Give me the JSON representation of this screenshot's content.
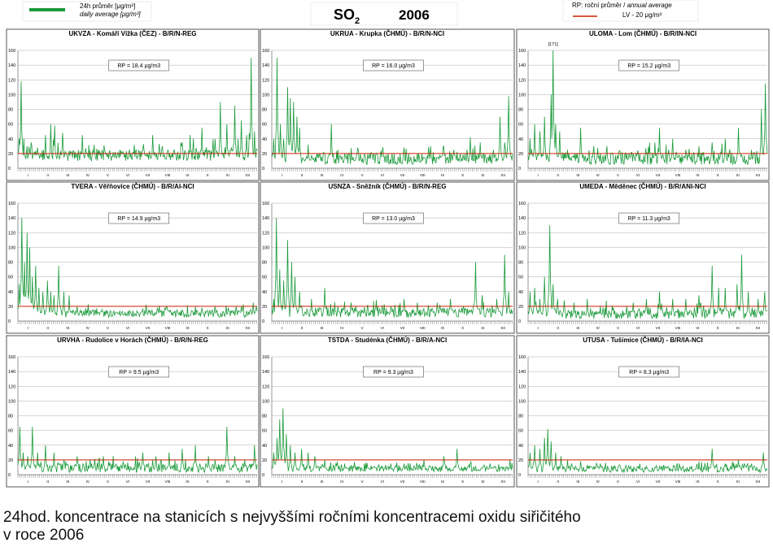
{
  "header": {
    "title_main": "SO",
    "title_sub": "2",
    "year": "2006",
    "legend_left_line1": "24h průměr [μg/m³]",
    "legend_left_line2": "daily average [μg/m³]",
    "legend_right_line1_a": "RP: roční průměr / ",
    "legend_right_line1_b": "annual average",
    "legend_right_line2": "LV  - 20 μg/m³"
  },
  "colors": {
    "series": "#1a9a3a",
    "limit": "#cc2200",
    "frame": "#555555",
    "grid": "#999999"
  },
  "caption": {
    "line1": "24hod. koncentrace na stanicích s nejvyššími ročními koncentracemi oxidu siřičitého",
    "line2": "v roce 2006"
  },
  "chart_data": [
    {
      "type": "line",
      "title": "UKVZA - Komáří Vížka (ČEZ) - B/R/N-REG",
      "rp_label": "RP = 18.4 µg/m3",
      "ylim": [
        0,
        160
      ],
      "yticks": [
        0,
        20,
        40,
        60,
        80,
        100,
        120,
        140,
        160
      ],
      "limit_value": 20,
      "months": [
        "I",
        "II",
        "III",
        "IV",
        "V",
        "VI",
        "VII",
        "VIII",
        "IX",
        "X",
        "XI",
        "XII"
      ],
      "annotation": "",
      "peaks": [
        [
          2,
          40
        ],
        [
          5,
          118
        ],
        [
          9,
          40
        ],
        [
          14,
          30
        ],
        [
          20,
          35
        ],
        [
          30,
          28
        ],
        [
          42,
          45
        ],
        [
          50,
          60
        ],
        [
          56,
          58
        ],
        [
          68,
          48
        ],
        [
          85,
          18
        ],
        [
          98,
          45
        ],
        [
          115,
          20
        ],
        [
          128,
          20
        ],
        [
          140,
          12
        ],
        [
          155,
          25
        ],
        [
          170,
          12
        ],
        [
          190,
          20
        ],
        [
          205,
          45
        ],
        [
          220,
          30
        ],
        [
          240,
          20
        ],
        [
          250,
          35
        ],
        [
          262,
          45
        ],
        [
          280,
          55
        ],
        [
          300,
          40
        ],
        [
          308,
          90
        ],
        [
          318,
          60
        ],
        [
          330,
          85
        ],
        [
          335,
          40
        ],
        [
          340,
          65
        ],
        [
          348,
          45
        ],
        [
          352,
          48
        ],
        [
          355,
          150
        ],
        [
          360,
          50
        ]
      ],
      "base": [
        10,
        25
      ],
      "noise": 18
    },
    {
      "type": "line",
      "title": "UKRUA - Krupka (ČHMÚ) - B/R/N-NCI",
      "rp_label": "RP = 16.0 µg/m3",
      "ylim": [
        0,
        160
      ],
      "yticks": [
        0,
        20,
        40,
        60,
        80,
        100,
        120,
        140,
        160
      ],
      "limit_value": 20,
      "months": [
        "I",
        "II",
        "III",
        "IV",
        "V",
        "VI",
        "VII",
        "VIII",
        "IX",
        "X",
        "XI",
        "XII"
      ],
      "annotation": "",
      "peaks": [
        [
          3,
          40
        ],
        [
          8,
          150
        ],
        [
          13,
          60
        ],
        [
          18,
          40
        ],
        [
          24,
          110
        ],
        [
          28,
          95
        ],
        [
          33,
          90
        ],
        [
          38,
          70
        ],
        [
          42,
          55
        ],
        [
          55,
          30
        ],
        [
          70,
          20
        ],
        [
          90,
          60
        ],
        [
          110,
          20
        ],
        [
          130,
          18
        ],
        [
          150,
          22
        ],
        [
          170,
          15
        ],
        [
          200,
          28
        ],
        [
          220,
          20
        ],
        [
          240,
          30
        ],
        [
          260,
          30
        ],
        [
          280,
          20
        ],
        [
          300,
          42
        ],
        [
          315,
          35
        ],
        [
          335,
          25
        ],
        [
          345,
          70
        ],
        [
          352,
          35
        ],
        [
          358,
          98
        ]
      ],
      "base": [
        5,
        20
      ],
      "noise": 15
    },
    {
      "type": "line",
      "title": "ULOMA - Lom (ČHMÚ) - B/R/IN-NCI",
      "rp_label": "RP = 15.2 µg/m3",
      "ylim": [
        0,
        160
      ],
      "yticks": [
        0,
        20,
        40,
        60,
        80,
        100,
        120,
        140,
        160
      ],
      "limit_value": 20,
      "months": [
        "I",
        "II",
        "III",
        "IV",
        "V",
        "VI",
        "VII",
        "VIII",
        "IX",
        "X",
        "XI",
        "XII"
      ],
      "annotation": "[171]",
      "peaks": [
        [
          3,
          40
        ],
        [
          10,
          60
        ],
        [
          18,
          50
        ],
        [
          25,
          70
        ],
        [
          35,
          100
        ],
        [
          38,
          160
        ],
        [
          42,
          60
        ],
        [
          48,
          50
        ],
        [
          60,
          25
        ],
        [
          80,
          55
        ],
        [
          100,
          30
        ],
        [
          120,
          30
        ],
        [
          150,
          20
        ],
        [
          170,
          20
        ],
        [
          200,
          55
        ],
        [
          220,
          40
        ],
        [
          240,
          25
        ],
        [
          260,
          30
        ],
        [
          280,
          35
        ],
        [
          300,
          40
        ],
        [
          320,
          55
        ],
        [
          340,
          25
        ],
        [
          355,
          80
        ],
        [
          361,
          115
        ]
      ],
      "base": [
        5,
        22
      ],
      "noise": 18
    },
    {
      "type": "line",
      "title": "TVERA -  Věřňovice (ČHMÚ) - B/R/AI-NCI",
      "rp_label": "RP = 14.9 µg/m3",
      "ylim": [
        0,
        160
      ],
      "yticks": [
        0,
        20,
        40,
        60,
        80,
        100,
        120,
        140,
        160
      ],
      "limit_value": 20,
      "months": [
        "I",
        "II",
        "III",
        "IV",
        "V",
        "VI",
        "VII",
        "VIII",
        "IX",
        "X",
        "XI",
        "XII"
      ],
      "annotation": "",
      "peaks": [
        [
          2,
          50
        ],
        [
          6,
          140
        ],
        [
          10,
          80
        ],
        [
          14,
          120
        ],
        [
          18,
          100
        ],
        [
          22,
          60
        ],
        [
          27,
          75
        ],
        [
          32,
          45
        ],
        [
          38,
          40
        ],
        [
          45,
          55
        ],
        [
          50,
          40
        ],
        [
          55,
          35
        ],
        [
          62,
          75
        ],
        [
          70,
          40
        ],
        [
          78,
          35
        ],
        [
          90,
          20
        ],
        [
          110,
          15
        ],
        [
          150,
          12
        ],
        [
          200,
          12
        ],
        [
          250,
          15
        ],
        [
          280,
          18
        ],
        [
          300,
          20
        ],
        [
          320,
          18
        ],
        [
          340,
          20
        ],
        [
          358,
          25
        ]
      ],
      "base": [
        5,
        15
      ],
      "noise": 10
    },
    {
      "type": "line",
      "title": "USNZA - Sněžník (ČHMÚ) - B/R/N-REG",
      "rp_label": "RP = 13.0 µg/m3",
      "ylim": [
        0,
        160
      ],
      "yticks": [
        0,
        20,
        40,
        60,
        80,
        100,
        120,
        140,
        160
      ],
      "limit_value": 20,
      "months": [
        "I",
        "II",
        "III",
        "IV",
        "V",
        "VI",
        "VII",
        "VIII",
        "IX",
        "X",
        "XI",
        "XII"
      ],
      "annotation": "",
      "peaks": [
        [
          3,
          30
        ],
        [
          7,
          140
        ],
        [
          12,
          70
        ],
        [
          18,
          55
        ],
        [
          24,
          110
        ],
        [
          30,
          80
        ],
        [
          35,
          60
        ],
        [
          42,
          40
        ],
        [
          60,
          30
        ],
        [
          80,
          45
        ],
        [
          100,
          20
        ],
        [
          120,
          25
        ],
        [
          150,
          15
        ],
        [
          180,
          20
        ],
        [
          200,
          30
        ],
        [
          220,
          25
        ],
        [
          250,
          25
        ],
        [
          270,
          30
        ],
        [
          290,
          20
        ],
        [
          308,
          80
        ],
        [
          318,
          35
        ],
        [
          340,
          30
        ],
        [
          352,
          90
        ],
        [
          358,
          40
        ]
      ],
      "base": [
        5,
        18
      ],
      "noise": 14
    },
    {
      "type": "line",
      "title": "UMEDA - Měděnec (ČHMÚ) - B/R/ANI-NCI",
      "rp_label": "RP = 11.3 µg/m3",
      "ylim": [
        0,
        160
      ],
      "yticks": [
        0,
        20,
        40,
        60,
        80,
        100,
        120,
        140,
        160
      ],
      "limit_value": 20,
      "months": [
        "I",
        "II",
        "III",
        "IV",
        "V",
        "VI",
        "VII",
        "VIII",
        "IX",
        "X",
        "XI",
        "XII"
      ],
      "annotation": "",
      "peaks": [
        [
          3,
          40
        ],
        [
          10,
          45
        ],
        [
          18,
          30
        ],
        [
          25,
          60
        ],
        [
          33,
          130
        ],
        [
          38,
          50
        ],
        [
          45,
          30
        ],
        [
          55,
          28
        ],
        [
          70,
          25
        ],
        [
          90,
          30
        ],
        [
          110,
          20
        ],
        [
          130,
          18
        ],
        [
          160,
          25
        ],
        [
          180,
          30
        ],
        [
          200,
          40
        ],
        [
          220,
          30
        ],
        [
          240,
          30
        ],
        [
          260,
          35
        ],
        [
          280,
          75
        ],
        [
          290,
          45
        ],
        [
          300,
          45
        ],
        [
          318,
          50
        ],
        [
          325,
          90
        ],
        [
          335,
          40
        ],
        [
          350,
          30
        ],
        [
          360,
          40
        ]
      ],
      "base": [
        3,
        15
      ],
      "noise": 14
    },
    {
      "type": "line",
      "title": "URVHA - Rudolice v Horách (ČHMÚ) - B/R/N-REG",
      "rp_label": "RP = 9.5 µg/m3",
      "ylim": [
        0,
        160
      ],
      "yticks": [
        0,
        20,
        40,
        60,
        80,
        100,
        120,
        140,
        160
      ],
      "limit_value": 20,
      "months": [
        "I",
        "II",
        "III",
        "IV",
        "V",
        "VI",
        "VII",
        "VIII",
        "IX",
        "X",
        "XI",
        "XII"
      ],
      "annotation": "",
      "peaks": [
        [
          3,
          65
        ],
        [
          8,
          30
        ],
        [
          15,
          25
        ],
        [
          22,
          65
        ],
        [
          30,
          30
        ],
        [
          42,
          40
        ],
        [
          55,
          30
        ],
        [
          70,
          20
        ],
        [
          90,
          25
        ],
        [
          110,
          20
        ],
        [
          130,
          25
        ],
        [
          160,
          18
        ],
        [
          190,
          30
        ],
        [
          210,
          25
        ],
        [
          230,
          30
        ],
        [
          250,
          35
        ],
        [
          270,
          40
        ],
        [
          290,
          25
        ],
        [
          300,
          20
        ],
        [
          318,
          65
        ],
        [
          330,
          25
        ],
        [
          345,
          20
        ],
        [
          360,
          40
        ]
      ],
      "base": [
        3,
        15
      ],
      "noise": 12
    },
    {
      "type": "line",
      "title": "TSTDA - Studénka (ČHMÚ) - B/R/A-NCI",
      "rp_label": "RP = 9.3 µg/m3",
      "ylim": [
        0,
        160
      ],
      "yticks": [
        0,
        20,
        40,
        60,
        80,
        100,
        120,
        140,
        160
      ],
      "limit_value": 20,
      "months": [
        "I",
        "II",
        "III",
        "IV",
        "V",
        "VI",
        "VII",
        "VIII",
        "IX",
        "X",
        "XI",
        "XII"
      ],
      "annotation": "",
      "peaks": [
        [
          3,
          30
        ],
        [
          8,
          50
        ],
        [
          12,
          75
        ],
        [
          17,
          90
        ],
        [
          22,
          55
        ],
        [
          28,
          40
        ],
        [
          35,
          30
        ],
        [
          45,
          35
        ],
        [
          55,
          30
        ],
        [
          65,
          25
        ],
        [
          80,
          20
        ],
        [
          110,
          15
        ],
        [
          150,
          12
        ],
        [
          180,
          15
        ],
        [
          200,
          15
        ],
        [
          230,
          20
        ],
        [
          260,
          25
        ],
        [
          280,
          35
        ],
        [
          300,
          15
        ],
        [
          330,
          15
        ],
        [
          360,
          20
        ]
      ],
      "base": [
        4,
        12
      ],
      "noise": 8
    },
    {
      "type": "line",
      "title": "UTUSA - Tušimice (ČHMÚ) - B/R/IA-NCI",
      "rp_label": "RP = 8.3 µg/m3",
      "ylim": [
        0,
        160
      ],
      "yticks": [
        0,
        20,
        40,
        60,
        80,
        100,
        120,
        140,
        160
      ],
      "limit_value": 20,
      "months": [
        "I",
        "II",
        "III",
        "IV",
        "V",
        "VI",
        "VII",
        "VIII",
        "IX",
        "X",
        "XI",
        "XII"
      ],
      "annotation": "",
      "peaks": [
        [
          3,
          30
        ],
        [
          10,
          40
        ],
        [
          18,
          35
        ],
        [
          25,
          50
        ],
        [
          30,
          62
        ],
        [
          35,
          45
        ],
        [
          42,
          30
        ],
        [
          50,
          25
        ],
        [
          60,
          20
        ],
        [
          80,
          18
        ],
        [
          110,
          15
        ],
        [
          140,
          12
        ],
        [
          170,
          15
        ],
        [
          200,
          12
        ],
        [
          230,
          15
        ],
        [
          260,
          18
        ],
        [
          280,
          35
        ],
        [
          300,
          15
        ],
        [
          320,
          20
        ],
        [
          340,
          15
        ],
        [
          358,
          30
        ]
      ],
      "base": [
        3,
        12
      ],
      "noise": 8
    }
  ]
}
